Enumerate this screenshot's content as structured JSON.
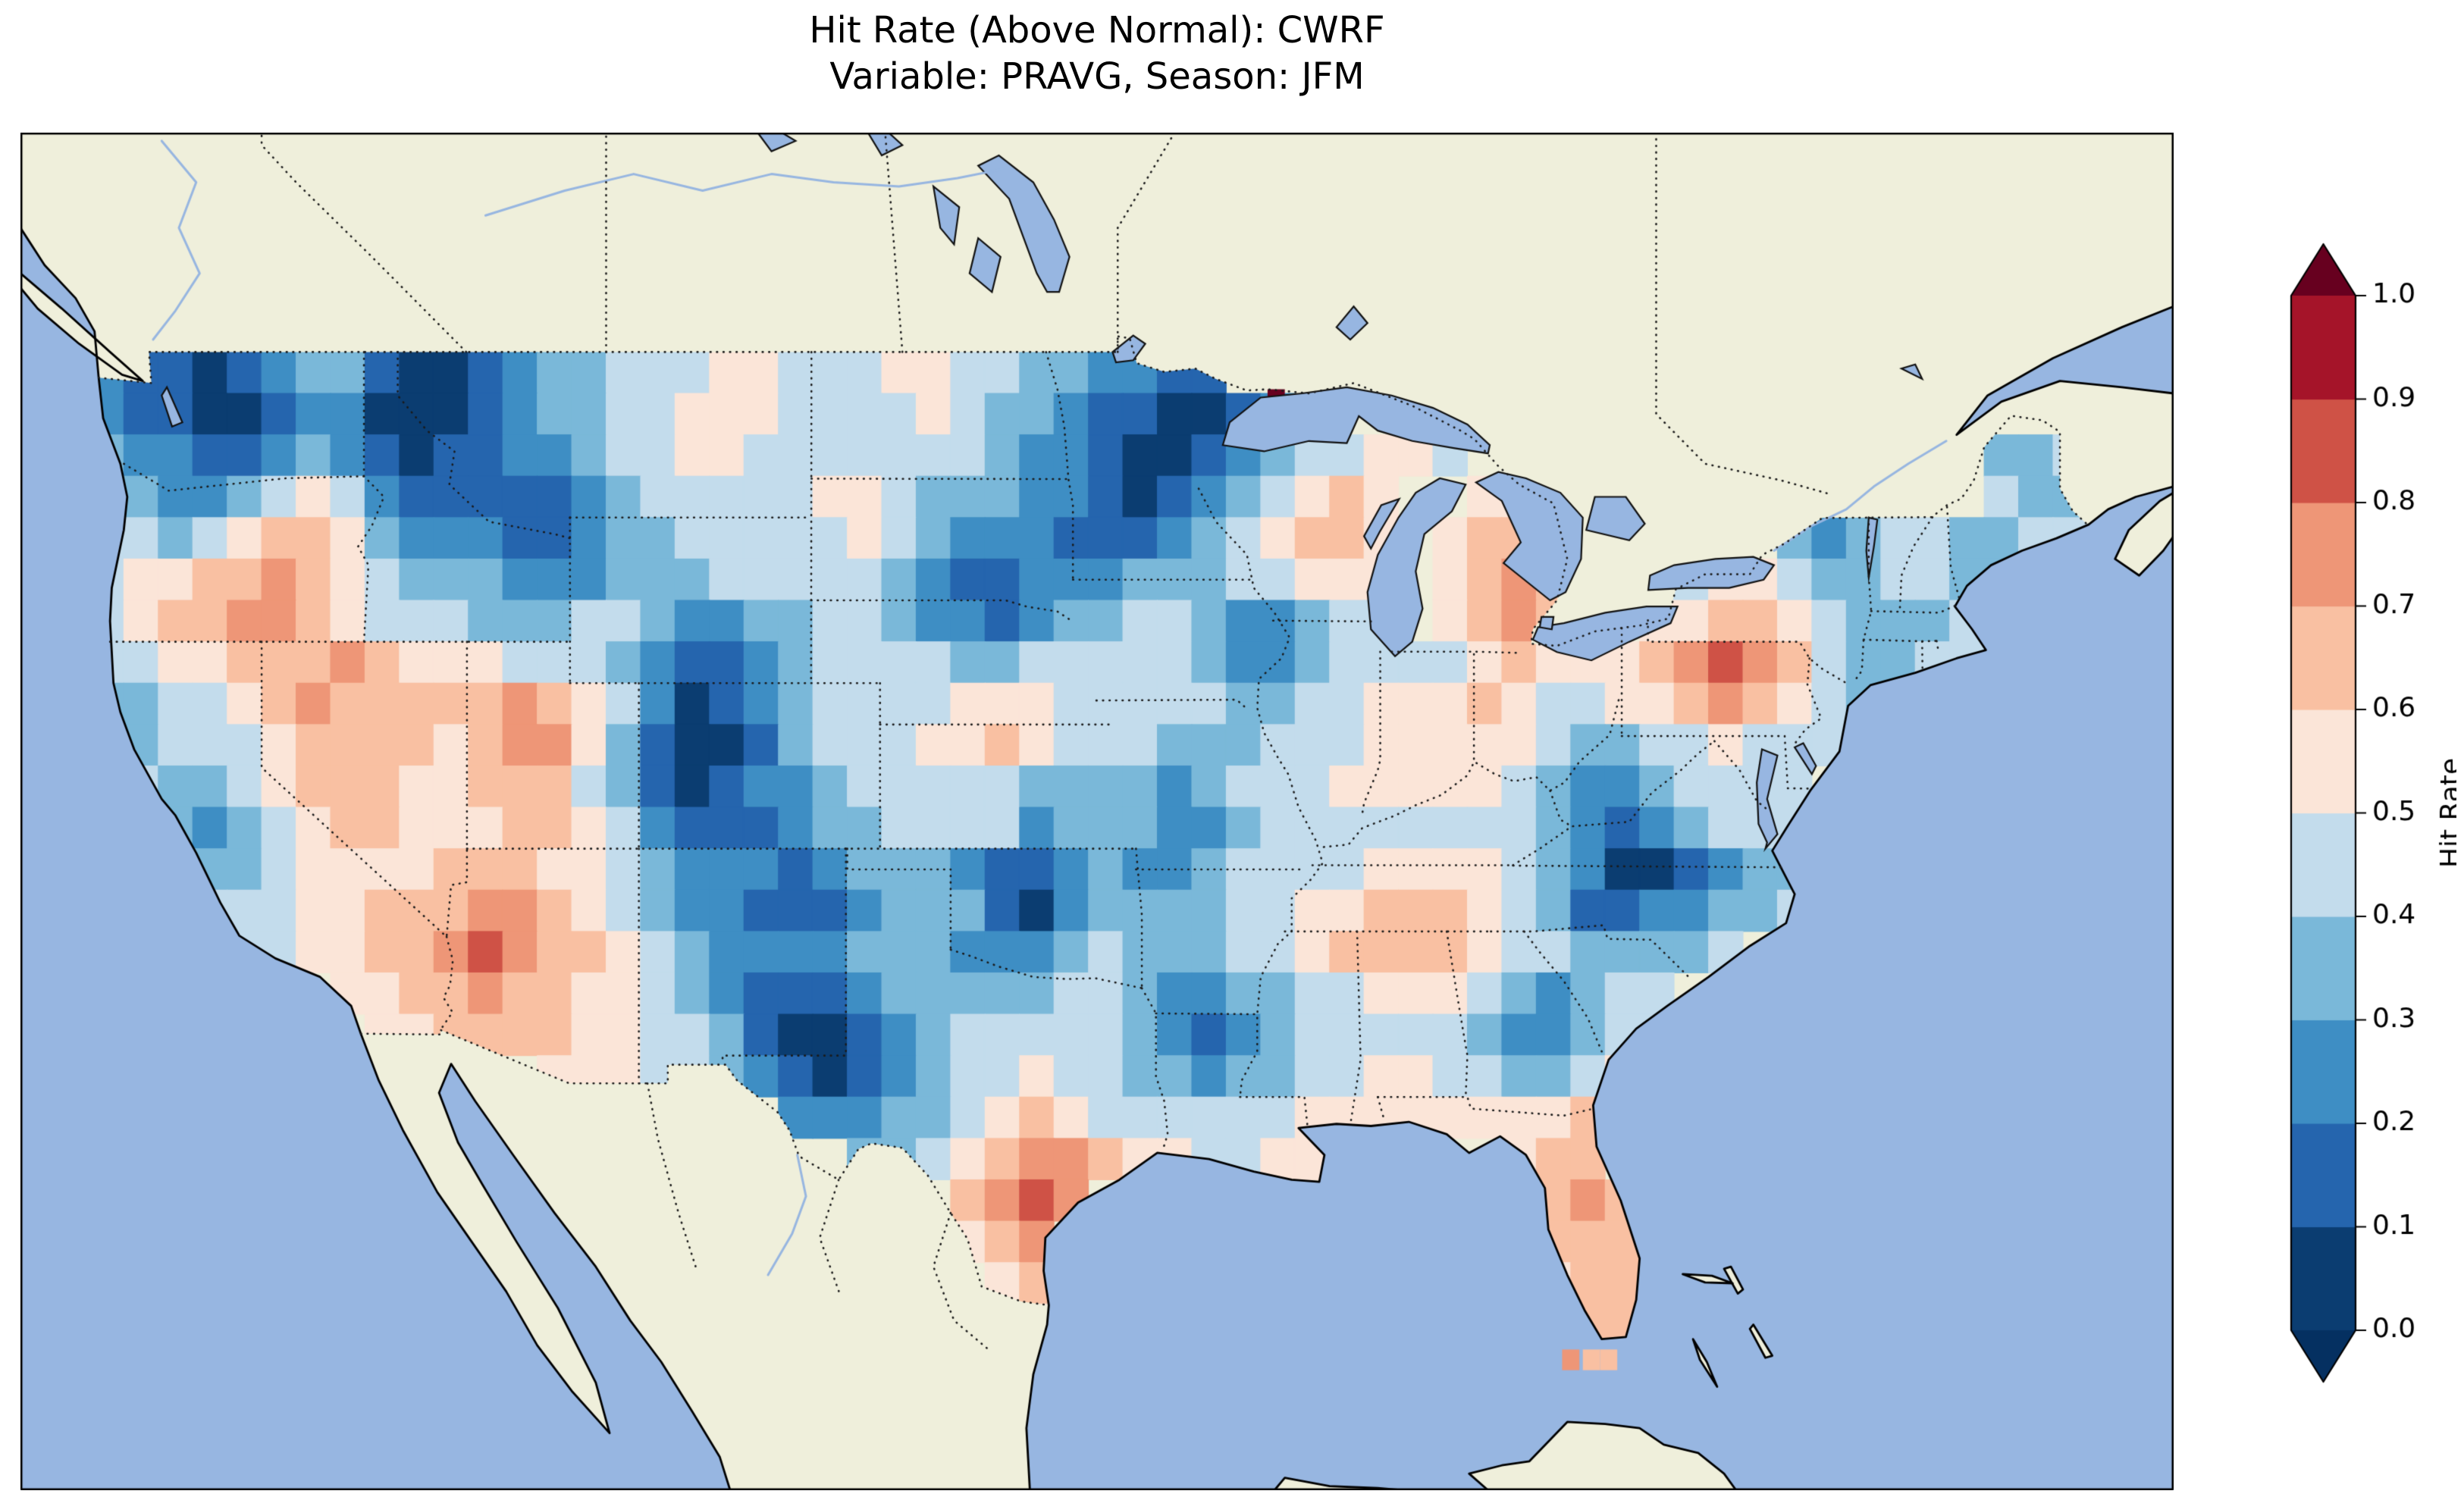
{
  "title": {
    "line1": "Hit Rate (Above Normal): CWRF",
    "line2": "Variable: PRAVG, Season: JFM"
  },
  "map": {
    "ocean_color": "#97b6e1",
    "land_color": "#efefdb",
    "coast_color": "#000000",
    "border_color": "#1a1a1a",
    "border_style": "dotted"
  },
  "colorbar": {
    "label": "Hit Rate",
    "ticks": [
      "0.0",
      "0.1",
      "0.2",
      "0.3",
      "0.4",
      "0.5",
      "0.6",
      "0.7",
      "0.8",
      "0.9",
      "1.0"
    ],
    "colors": [
      "#0b3d71",
      "#2565ae",
      "#3e8ec4",
      "#7ab8d9",
      "#c3dcec",
      "#fbe5d8",
      "#f9c0a2",
      "#ee9677",
      "#cf5246",
      "#a51429"
    ],
    "under_color": "#053061",
    "over_color": "#67001f",
    "orientation": "vertical",
    "position": "right",
    "extend": "both"
  },
  "chart_data": {
    "type": "heatmap",
    "title": "Hit Rate (Above Normal): CWRF",
    "subtitle": "Variable: PRAVG, Season: JFM",
    "metric": "Hit Rate (Above Normal)",
    "model": "CWRF",
    "variable": "PRAVG",
    "season": "JFM",
    "value_range": [
      0.0,
      1.0
    ],
    "legend_label": "Hit Rate",
    "legend_position": "right",
    "map_extent": {
      "lon": [
        -127.0,
        -64.5
      ],
      "lat": [
        21.5,
        54.3
      ]
    },
    "grid": {
      "lon_min": -125,
      "lon_step": 1,
      "lat_max": 49,
      "lat_step": 1,
      "columns": 58,
      "row_count": 24,
      "encoding": "each char is a hit-rate decile bin estimated from the plot colors: 0=0.0-0.1 (dark blue) ... 9=0.9-1.0 (dark red); '.' = no data (outside CONUS mask)",
      "rows": [
        "211012331001233444554445544332211.........................",
        "21100122000123344555444454332110012.......................",
        "3221123210112234455444444432210012344554...............334",
        "43223454211111234444455433322101234565..55.............433",
        "44345665322211233444445432221112345665.566.......323443344",
        "45566765433322233344444321122233344555.5676..445543344334.",
        "45667765444333443223344322123344322344.5676..55665433344..",
        "4455666765554443211234444334444432234444565556787643344...",
        "33445676666676542012344445554444433445556544556765433.....",
        ".34445666656775310013444556544433344455555433445444.......",
        ".4334566655666431012234444433332344455555432234444........",
        "..323456655566542111233444423332234444444432123444........",
        "...33455556665543222123332112322344445555432001233........",
        "...44455666776543221112333102333344556665431122334........",
        "....44556678766543222233322234333445666654433334..........",
        ".......556676655432111233333443223344555432344............",
        "........55666655443100123444443212344444322344............",
        ".............55544321012344544332334455443345.............",
        "....................222334565444444555555556..............",
        "......................33456776554455.....566..............",
        ".........................6787.............676.............",
        ".........................567..............666.............",
        "..........................56..............566.............",
        "...........................5...............66............."
      ]
    },
    "extra_cells": [
      {
        "lon": -90.55,
        "lat": 47.85,
        "bin": 10
      },
      {
        "lon": -82.0,
        "lat": 24.65,
        "bin": 7
      },
      {
        "lon": -81.4,
        "lat": 24.65,
        "bin": 6
      },
      {
        "lon": -80.9,
        "lat": 24.65,
        "bin": 6
      }
    ]
  }
}
